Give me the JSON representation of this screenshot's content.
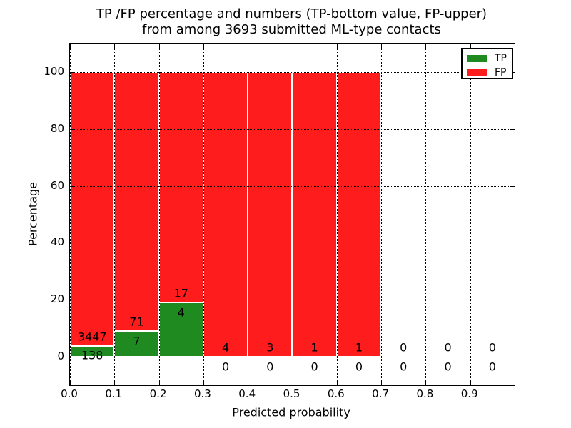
{
  "chart_data": {
    "type": "bar",
    "stacked": true,
    "title": "TP /FP percentage and numbers (TP-bottom value, FP-upper)\nfrom among 3693 submitted ML-type contacts",
    "xlabel": "Predicted probability",
    "ylabel": "Percentage",
    "xlim": [
      0.0,
      1.0
    ],
    "ylim": [
      -10,
      110
    ],
    "xticks": [
      "0.0",
      "0.1",
      "0.2",
      "0.3",
      "0.4",
      "0.5",
      "0.6",
      "0.7",
      "0.8",
      "0.9"
    ],
    "xtick_values": [
      0.0,
      0.1,
      0.2,
      0.3,
      0.4,
      0.5,
      0.6,
      0.7,
      0.8,
      0.9
    ],
    "yticks": [
      0,
      20,
      40,
      60,
      80,
      100
    ],
    "grid": "dotted black, drawn above bars",
    "bar_edge_color": "#ffffff",
    "bin_width": 0.1,
    "bin_starts": [
      0.0,
      0.1,
      0.2,
      0.3,
      0.4,
      0.5,
      0.6,
      0.7,
      0.8,
      0.9
    ],
    "legend_position": "upper right",
    "series": [
      {
        "name": "TP",
        "color": "#1F8A1F",
        "stack_position": "bottom",
        "values": [
          138,
          7,
          4,
          0,
          0,
          0,
          0,
          0,
          0,
          0
        ]
      },
      {
        "name": "FP",
        "color": "#FF1C1C",
        "stack_position": "top",
        "values": [
          3447,
          71,
          17,
          4,
          3,
          1,
          1,
          0,
          0,
          0
        ]
      }
    ],
    "bar_unit": "percent of bin total (each drawn bar stacks to 100%)"
  }
}
